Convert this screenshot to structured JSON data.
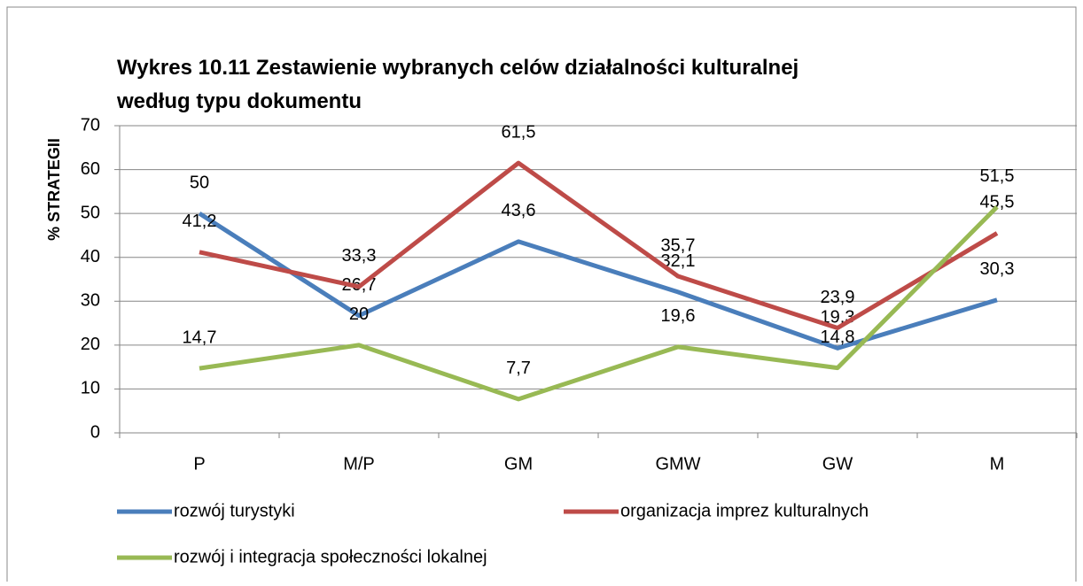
{
  "chart_data": {
    "type": "line",
    "title": [
      "Wykres 10.11 Zestawienie wybranych celów działalności kulturalnej",
      "według typu dokumentu"
    ],
    "y_label": "% STRATEGII",
    "categories": [
      "P",
      "M/P",
      "GM",
      "GMW",
      "GW",
      "M"
    ],
    "series": [
      {
        "name": "rozwój turystyki",
        "color": "#4a7ebb",
        "values": [
          50,
          26.7,
          43.6,
          32.1,
          19.3,
          30.3
        ],
        "value_labels": [
          "50",
          "26,7",
          "43,6",
          "32,1",
          "19,3",
          "30,3"
        ]
      },
      {
        "name": "organizacja imprez kulturalnych",
        "color": "#be4b48",
        "values": [
          41.2,
          33.3,
          61.5,
          35.7,
          23.9,
          45.5
        ],
        "value_labels": [
          "41,2",
          "33,3",
          "61,5",
          "35,7",
          "23,9",
          "45,5"
        ]
      },
      {
        "name": "rozwój i integracja społeczności lokalnej",
        "color": "#98b954",
        "values": [
          14.7,
          20,
          7.7,
          19.6,
          14.8,
          51.5
        ],
        "value_labels": [
          "14,7",
          "20",
          "7,7",
          "19,6",
          "14,8",
          "51,5"
        ]
      }
    ],
    "ylim": [
      0,
      70
    ],
    "yticks": [
      0,
      10,
      20,
      30,
      40,
      50,
      60,
      70
    ],
    "grid": true,
    "legend": "bottom"
  }
}
